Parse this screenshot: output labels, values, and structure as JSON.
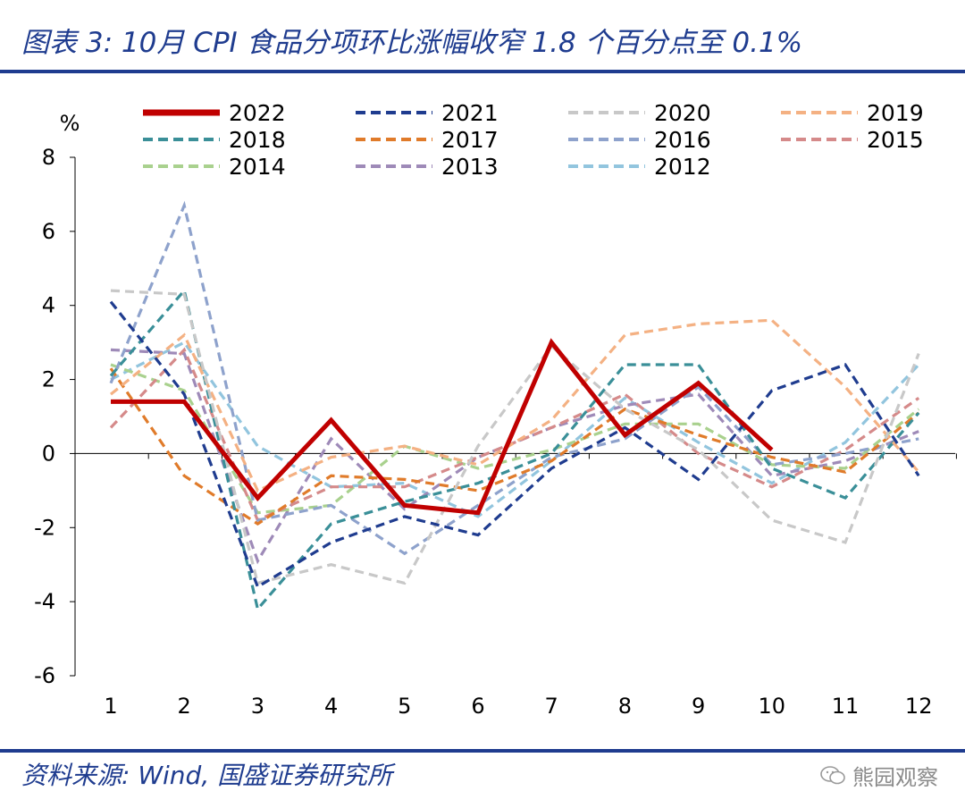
{
  "header": {
    "title": "图表 3:  10月 CPI 食品分项环比涨幅收窄 1.8 个百分点至 0.1%"
  },
  "footer": {
    "source": "资料来源:  Wind,  国盛证券研究所",
    "watermark": "熊园观察",
    "watermark_icon": "wechat-icon"
  },
  "chart_data": {
    "type": "line",
    "title": "10月 CPI 食品分项环比涨幅收窄 1.8 个百分点至 0.1%",
    "ylabel": "%",
    "xlabel": "",
    "ylim": [
      -6,
      8
    ],
    "yticks": [
      8,
      6,
      4,
      2,
      0,
      -2,
      -4,
      -6
    ],
    "ytick_labels": [
      "8",
      "6",
      "4",
      "2",
      "0",
      "-2",
      "-4",
      "-6"
    ],
    "categories": [
      "1",
      "2",
      "3",
      "4",
      "5",
      "6",
      "7",
      "8",
      "9",
      "10",
      "11",
      "12"
    ],
    "series": [
      {
        "name": "2022",
        "color": "#c00000",
        "style": "solid",
        "values": [
          1.4,
          1.4,
          -1.2,
          0.9,
          -1.4,
          -1.6,
          3.0,
          0.5,
          1.9,
          0.1,
          null,
          null
        ]
      },
      {
        "name": "2021",
        "color": "#1f3c8f",
        "style": "dash",
        "values": [
          4.1,
          1.6,
          -3.6,
          -2.4,
          -1.7,
          -2.2,
          -0.4,
          0.7,
          -0.7,
          1.7,
          2.4,
          -0.6
        ]
      },
      {
        "name": "2020",
        "color": "#c8c8c8",
        "style": "dash",
        "values": [
          4.4,
          4.3,
          -3.5,
          -3.0,
          -3.5,
          0.2,
          2.9,
          1.2,
          0.1,
          -1.8,
          -2.4,
          2.7
        ]
      },
      {
        "name": "2019",
        "color": "#f4b183",
        "style": "dash",
        "values": [
          1.6,
          3.2,
          -1.0,
          -0.1,
          0.2,
          -0.3,
          0.9,
          3.2,
          3.5,
          3.6,
          1.8,
          -0.5
        ]
      },
      {
        "name": "2018",
        "color": "#3a8f98",
        "style": "dash",
        "values": [
          2.1,
          4.4,
          -4.2,
          -1.9,
          -1.3,
          -0.8,
          0.0,
          2.4,
          2.4,
          -0.4,
          -1.2,
          1.1
        ]
      },
      {
        "name": "2017",
        "color": "#e07b2a",
        "style": "dash",
        "values": [
          2.3,
          -0.6,
          -1.9,
          -0.6,
          -0.7,
          -1.0,
          -0.2,
          1.2,
          0.5,
          -0.1,
          -0.5,
          1.1
        ]
      },
      {
        "name": "2016",
        "color": "#8ea2cc",
        "style": "dash",
        "values": [
          1.9,
          6.7,
          -1.8,
          -1.4,
          -2.7,
          -1.4,
          -0.1,
          0.4,
          1.8,
          -0.3,
          0.0,
          0.4
        ]
      },
      {
        "name": "2015",
        "color": "#d58a8a",
        "style": "dash",
        "values": [
          0.7,
          2.8,
          -1.8,
          -0.9,
          -0.9,
          -0.1,
          0.7,
          1.6,
          0.0,
          -0.9,
          0.1,
          1.5
        ]
      },
      {
        "name": "2014",
        "color": "#a9d18e",
        "style": "dash",
        "values": [
          2.4,
          1.7,
          -1.6,
          -1.4,
          0.2,
          -0.4,
          0.1,
          0.8,
          0.8,
          -0.3,
          -0.4,
          1.2
        ]
      },
      {
        "name": "2013",
        "color": "#9e8ab8",
        "style": "dash",
        "values": [
          2.8,
          2.7,
          -2.9,
          0.4,
          -1.5,
          -0.1,
          0.7,
          1.3,
          1.6,
          -0.6,
          -0.2,
          0.6
        ]
      },
      {
        "name": "2012",
        "color": "#92c5de",
        "style": "dash",
        "values": [
          2.0,
          3.0,
          0.2,
          -0.9,
          -0.8,
          -1.7,
          -0.2,
          1.5,
          0.3,
          -0.8,
          0.3,
          2.4
        ]
      }
    ]
  }
}
